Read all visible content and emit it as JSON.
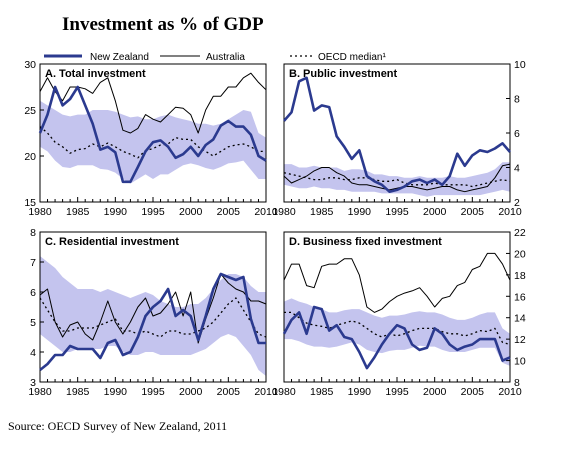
{
  "figure": {
    "title": "Investment as % of GDP",
    "source": "Source: OECD Survey of New Zealand, 2011"
  },
  "legend": {
    "items": [
      {
        "label": "New Zealand",
        "color": "#2b3a8f",
        "style": "thick"
      },
      {
        "label": "Australia",
        "color": "#000000",
        "style": "thin"
      },
      {
        "label": "OECD median¹",
        "color": "#000000",
        "style": "dotted"
      }
    ]
  },
  "colors": {
    "new_zealand": "#2b3a8f",
    "australia": "#000000",
    "oecd_median": "#000000",
    "oecd_range_band": "#c4c4ee"
  },
  "chart_data": [
    {
      "type": "line",
      "title": "A. Total investment",
      "y_axis_side": "left",
      "ylim": [
        15,
        30
      ],
      "yticks": [
        15,
        20,
        25,
        30
      ],
      "xlim": [
        1980,
        2010
      ],
      "xticks": [
        1980,
        1985,
        1990,
        1995,
        2000,
        2005,
        2010
      ],
      "x": [
        1980,
        1981,
        1982,
        1983,
        1984,
        1985,
        1986,
        1987,
        1988,
        1989,
        1990,
        1991,
        1992,
        1993,
        1994,
        1995,
        1996,
        1997,
        1998,
        1999,
        2000,
        2001,
        2002,
        2003,
        2004,
        2005,
        2006,
        2007,
        2008,
        2009,
        2010
      ],
      "series": [
        {
          "name": "New Zealand",
          "values": [
            22.5,
            24.5,
            27.5,
            25.5,
            26.2,
            27.5,
            25.5,
            23.5,
            20.7,
            21.0,
            20.4,
            17.2,
            17.2,
            18.8,
            20.5,
            21.5,
            21.7,
            21.0,
            19.8,
            20.2,
            21.0,
            20.0,
            21.2,
            21.8,
            23.3,
            23.8,
            23.2,
            23.2,
            22.3,
            20.0,
            19.5
          ]
        },
        {
          "name": "Australia",
          "values": [
            27.0,
            28.5,
            27.0,
            26.0,
            27.5,
            27.5,
            27.3,
            26.8,
            28.0,
            28.5,
            26.0,
            22.8,
            22.5,
            23.0,
            24.5,
            24.0,
            23.7,
            24.5,
            25.3,
            25.2,
            24.5,
            22.5,
            25.0,
            26.5,
            26.5,
            27.5,
            27.5,
            28.5,
            29.0,
            28.0,
            27.2
          ]
        },
        {
          "name": "OECD median¹",
          "values": [
            23.2,
            22.5,
            21.5,
            21.0,
            20.3,
            20.7,
            20.8,
            21.3,
            21.0,
            21.4,
            21.0,
            20.5,
            20.2,
            19.8,
            20.6,
            20.8,
            21.2,
            21.3,
            22.0,
            21.8,
            21.8,
            21.0,
            20.5,
            20.0,
            20.5,
            21.0,
            21.2,
            21.3,
            21.0,
            20.5,
            20.5
          ]
        },
        {
          "name": "OECD range upper",
          "values": [
            26.0,
            25.5,
            25.0,
            24.5,
            24.3,
            24.5,
            24.5,
            25.0,
            25.0,
            25.0,
            24.8,
            24.5,
            24.2,
            24.3,
            24.0,
            24.0,
            24.3,
            24.5,
            24.2,
            24.0,
            23.8,
            23.5,
            23.5,
            23.3,
            23.5,
            24.0,
            24.5,
            25.0,
            24.8,
            22.5,
            22.0
          ]
        },
        {
          "name": "OECD range lower",
          "values": [
            21.0,
            20.5,
            19.5,
            18.8,
            18.7,
            19.0,
            19.0,
            19.0,
            18.6,
            18.5,
            18.2,
            17.5,
            17.0,
            17.5,
            18.0,
            17.5,
            18.0,
            18.0,
            18.5,
            19.0,
            19.2,
            19.0,
            18.7,
            18.5,
            18.8,
            19.2,
            19.3,
            19.5,
            18.5,
            17.5,
            17.5
          ]
        }
      ]
    },
    {
      "type": "line",
      "title": "B. Public investment",
      "y_axis_side": "right",
      "ylim": [
        2,
        10
      ],
      "yticks": [
        2,
        4,
        6,
        8,
        10
      ],
      "xlim": [
        1980,
        2010
      ],
      "xticks": [
        1980,
        1985,
        1990,
        1995,
        2000,
        2005,
        2010
      ],
      "x": [
        1980,
        1981,
        1982,
        1983,
        1984,
        1985,
        1986,
        1987,
        1988,
        1989,
        1990,
        1991,
        1992,
        1993,
        1994,
        1995,
        1996,
        1997,
        1998,
        1999,
        2000,
        2001,
        2002,
        2003,
        2004,
        2005,
        2006,
        2007,
        2008,
        2009,
        2010
      ],
      "series": [
        {
          "name": "New Zealand",
          "values": [
            6.7,
            7.2,
            9.0,
            9.2,
            7.3,
            7.6,
            7.5,
            5.8,
            5.2,
            4.5,
            5.0,
            3.5,
            3.2,
            3.0,
            2.6,
            2.7,
            2.9,
            3.2,
            3.3,
            3.1,
            3.3,
            3.0,
            3.5,
            4.8,
            4.1,
            4.7,
            5.0,
            4.9,
            5.1,
            5.4,
            4.9
          ]
        },
        {
          "name": "Australia",
          "values": [
            3.5,
            3.1,
            3.3,
            3.5,
            3.8,
            4.0,
            4.0,
            3.7,
            3.5,
            3.1,
            3.0,
            3.0,
            2.9,
            2.8,
            2.7,
            2.8,
            2.9,
            2.9,
            2.8,
            2.7,
            2.8,
            2.9,
            2.9,
            2.7,
            2.6,
            2.7,
            2.8,
            2.9,
            3.4,
            4.1,
            4.2
          ]
        },
        {
          "name": "OECD median¹",
          "values": [
            3.7,
            3.6,
            3.5,
            3.4,
            3.3,
            3.3,
            3.4,
            3.4,
            3.3,
            3.3,
            3.4,
            3.4,
            3.3,
            3.2,
            3.2,
            3.3,
            3.1,
            3.0,
            3.0,
            3.0,
            3.1,
            3.0,
            3.0,
            3.0,
            3.0,
            2.9,
            3.0,
            3.1,
            3.2,
            3.3,
            3.2
          ]
        },
        {
          "name": "OECD range upper",
          "values": [
            4.2,
            4.2,
            4.0,
            4.0,
            4.1,
            4.0,
            4.0,
            4.0,
            3.8,
            3.9,
            3.9,
            3.8,
            3.6,
            3.6,
            3.5,
            3.5,
            3.4,
            3.4,
            3.5,
            3.4,
            3.4,
            3.4,
            3.5,
            3.4,
            3.4,
            3.5,
            3.6,
            3.7,
            3.9,
            4.3,
            4.3
          ]
        },
        {
          "name": "OECD range lower",
          "values": [
            3.0,
            2.9,
            2.8,
            2.8,
            2.9,
            2.8,
            2.8,
            2.7,
            2.7,
            2.6,
            2.6,
            2.6,
            2.6,
            2.5,
            2.5,
            2.5,
            2.5,
            2.5,
            2.4,
            2.3,
            2.4,
            2.4,
            2.4,
            2.4,
            2.4,
            2.4,
            2.4,
            2.5,
            2.6,
            2.7,
            2.6
          ]
        }
      ]
    },
    {
      "type": "line",
      "title": "C. Residential investment",
      "y_axis_side": "left",
      "ylim": [
        3,
        8
      ],
      "yticks": [
        3,
        4,
        5,
        6,
        7,
        8
      ],
      "xlim": [
        1980,
        2010
      ],
      "xticks": [
        1980,
        1985,
        1990,
        1995,
        2000,
        2005,
        2010
      ],
      "x": [
        1980,
        1981,
        1982,
        1983,
        1984,
        1985,
        1986,
        1987,
        1988,
        1989,
        1990,
        1991,
        1992,
        1993,
        1994,
        1995,
        1996,
        1997,
        1998,
        1999,
        2000,
        2001,
        2002,
        2003,
        2004,
        2005,
        2006,
        2007,
        2008,
        2009,
        2010
      ],
      "series": [
        {
          "name": "New Zealand",
          "values": [
            3.4,
            3.6,
            3.9,
            3.9,
            4.2,
            4.1,
            4.1,
            4.1,
            3.8,
            4.3,
            4.4,
            3.9,
            4.0,
            4.5,
            5.2,
            5.5,
            5.7,
            6.1,
            5.2,
            5.4,
            5.2,
            4.4,
            5.2,
            6.1,
            6.6,
            6.5,
            6.4,
            6.5,
            5.1,
            4.3,
            4.3
          ]
        },
        {
          "name": "Australia",
          "values": [
            5.9,
            6.1,
            5.0,
            4.5,
            4.9,
            5.0,
            4.6,
            4.4,
            5.0,
            5.7,
            5.0,
            4.6,
            5.0,
            5.5,
            5.8,
            5.2,
            5.3,
            5.6,
            6.0,
            5.2,
            6.0,
            4.3,
            5.1,
            5.8,
            6.6,
            6.3,
            6.1,
            6.0,
            5.7,
            5.7,
            5.6
          ]
        },
        {
          "name": "OECD median¹",
          "values": [
            5.8,
            5.4,
            5.0,
            4.7,
            4.7,
            4.8,
            4.8,
            4.8,
            4.9,
            5.0,
            5.1,
            4.7,
            4.7,
            4.6,
            4.7,
            4.6,
            4.5,
            4.7,
            4.7,
            4.6,
            4.6,
            4.7,
            4.8,
            5.0,
            5.3,
            5.6,
            5.8,
            5.4,
            5.0,
            4.6,
            4.5
          ]
        },
        {
          "name": "OECD range upper",
          "values": [
            7.2,
            7.0,
            6.8,
            6.5,
            6.3,
            6.1,
            6.1,
            6.1,
            6.0,
            6.1,
            6.0,
            5.9,
            5.8,
            5.9,
            6.0,
            5.9,
            5.7,
            5.6,
            5.5,
            5.5,
            5.6,
            5.6,
            5.8,
            6.1,
            6.4,
            6.6,
            6.6,
            6.5,
            6.2,
            6.0,
            6.0
          ]
        },
        {
          "name": "OECD range lower",
          "values": [
            4.6,
            4.4,
            4.2,
            4.0,
            4.0,
            4.1,
            4.1,
            4.1,
            4.1,
            4.2,
            4.2,
            4.0,
            3.9,
            3.9,
            4.0,
            4.0,
            3.9,
            3.9,
            3.9,
            3.9,
            3.9,
            4.0,
            4.1,
            4.3,
            4.5,
            4.6,
            4.5,
            4.2,
            3.9,
            3.4,
            3.2
          ]
        }
      ]
    },
    {
      "type": "line",
      "title": "D. Business fixed investment",
      "y_axis_side": "right",
      "ylim": [
        8,
        22
      ],
      "yticks": [
        8,
        10,
        12,
        14,
        16,
        18,
        20,
        22
      ],
      "xlim": [
        1980,
        2010
      ],
      "xticks": [
        1980,
        1985,
        1990,
        1995,
        2000,
        2005,
        2010
      ],
      "x": [
        1980,
        1981,
        1982,
        1983,
        1984,
        1985,
        1986,
        1987,
        1988,
        1989,
        1990,
        1991,
        1992,
        1993,
        1994,
        1995,
        1996,
        1997,
        1998,
        1999,
        2000,
        2001,
        2002,
        2003,
        2004,
        2005,
        2006,
        2007,
        2008,
        2009,
        2010
      ],
      "series": [
        {
          "name": "New Zealand",
          "values": [
            12.5,
            13.8,
            14.5,
            12.5,
            15.0,
            14.8,
            12.8,
            13.3,
            12.2,
            12.0,
            10.8,
            9.3,
            10.3,
            11.5,
            12.5,
            13.3,
            13.0,
            11.5,
            11.0,
            11.2,
            13.0,
            12.5,
            11.5,
            11.0,
            11.3,
            11.5,
            12.0,
            12.0,
            12.0,
            10.0,
            10.3
          ]
        },
        {
          "name": "Australia",
          "values": [
            17.5,
            19.0,
            19.0,
            17.0,
            16.8,
            18.8,
            19.0,
            19.0,
            19.5,
            19.5,
            18.0,
            15.0,
            14.5,
            14.8,
            15.5,
            16.0,
            16.3,
            16.5,
            16.8,
            16.0,
            15.0,
            15.8,
            16.0,
            17.0,
            17.3,
            18.5,
            18.8,
            20.0,
            20.0,
            19.0,
            17.5
          ]
        },
        {
          "name": "OECD median¹",
          "values": [
            14.5,
            14.5,
            14.0,
            13.5,
            13.3,
            13.2,
            13.0,
            13.3,
            13.5,
            13.7,
            13.5,
            13.0,
            12.5,
            12.2,
            12.5,
            12.3,
            12.5,
            12.8,
            13.0,
            13.0,
            13.0,
            12.7,
            12.5,
            12.5,
            12.3,
            12.5,
            12.8,
            12.7,
            13.0,
            11.7,
            11.5
          ]
        },
        {
          "name": "OECD range upper",
          "values": [
            15.5,
            15.8,
            15.5,
            15.3,
            15.0,
            14.8,
            14.5,
            14.5,
            14.7,
            14.8,
            14.8,
            14.5,
            14.2,
            14.0,
            14.2,
            14.2,
            14.3,
            14.5,
            14.6,
            14.5,
            14.5,
            14.3,
            14.0,
            13.8,
            13.8,
            14.0,
            14.3,
            14.5,
            14.5,
            13.0,
            12.5
          ]
        },
        {
          "name": "OECD range lower",
          "values": [
            12.0,
            12.0,
            11.8,
            11.5,
            11.3,
            11.3,
            11.2,
            11.3,
            11.5,
            11.7,
            11.5,
            11.0,
            10.8,
            10.7,
            10.9,
            11.0,
            11.0,
            11.2,
            11.4,
            11.3,
            11.3,
            11.0,
            10.8,
            10.8,
            10.8,
            11.0,
            11.2,
            11.2,
            11.2,
            9.8,
            9.5
          ]
        }
      ]
    }
  ]
}
